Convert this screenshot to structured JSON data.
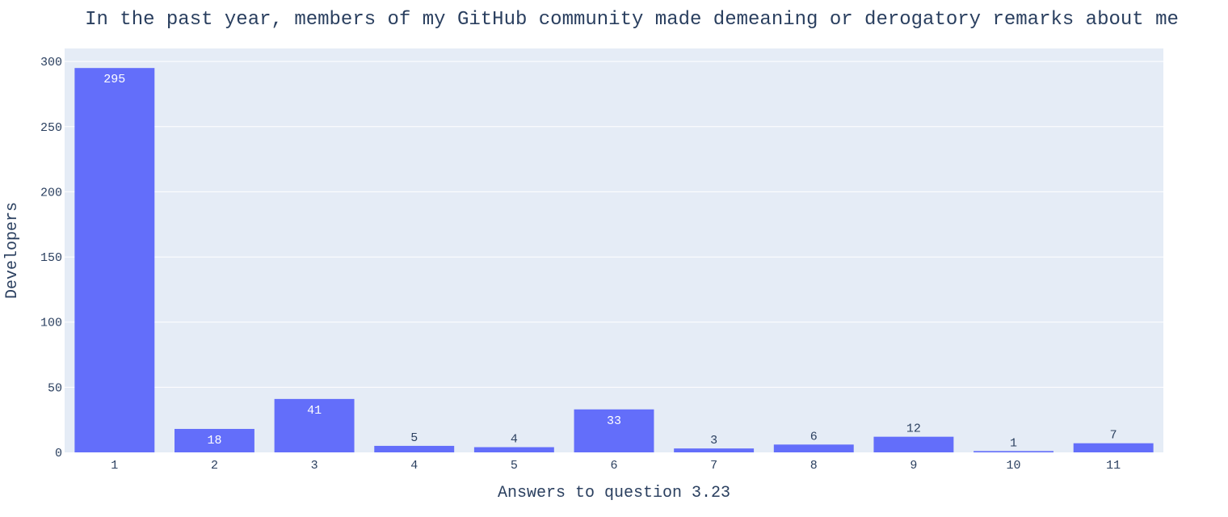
{
  "chart_data": {
    "type": "bar",
    "title": "In the past year, members of my GitHub community made demeaning or derogatory remarks about me",
    "xlabel": "Answers to question 3.23",
    "ylabel": "Developers",
    "categories": [
      "1",
      "2",
      "3",
      "4",
      "5",
      "6",
      "7",
      "8",
      "9",
      "10",
      "11"
    ],
    "values": [
      295,
      18,
      41,
      5,
      4,
      33,
      3,
      6,
      12,
      1,
      7
    ],
    "data_labels": [
      "295",
      "18",
      "41",
      "5",
      "4",
      "33",
      "3",
      "6",
      "12",
      "1",
      "7"
    ],
    "ylim": [
      0,
      310
    ],
    "yticks": [
      0,
      50,
      100,
      150,
      200,
      250,
      300
    ],
    "ytick_labels": [
      "0",
      "50",
      "100",
      "150",
      "200",
      "250",
      "300"
    ],
    "grid": true,
    "legend": "none",
    "colors": {
      "bar": "#636efa",
      "plot_background": "#e5ecf6",
      "grid": "#ffffff",
      "text": "#2a3f5f"
    }
  }
}
